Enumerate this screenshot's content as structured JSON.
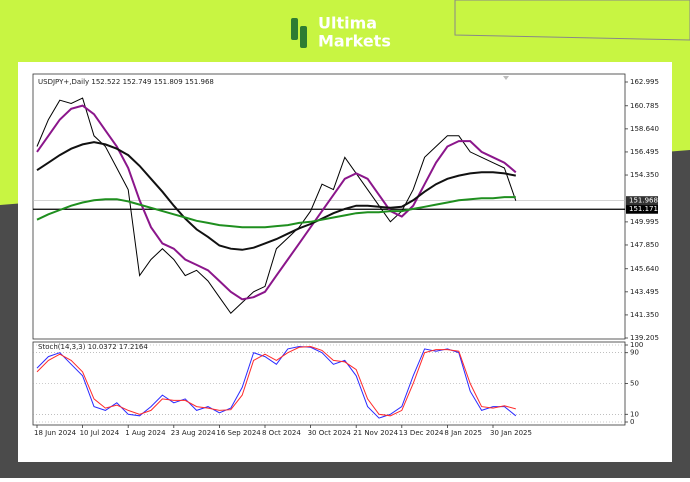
{
  "logo": {
    "line1": "Ultima",
    "line2": "Markets"
  },
  "chart_data": [
    {
      "type": "line",
      "title": "USDJPY+,Daily  152.522 152.749 151.809 151.968",
      "categories": [
        "18 Jun 2024",
        null,
        null,
        null,
        "10 Jul 2024",
        null,
        null,
        null,
        "1 Aug 2024",
        null,
        null,
        null,
        "23 Aug 2024",
        null,
        null,
        null,
        "16 Sep 2024",
        null,
        null,
        null,
        "8 Oct 2024",
        null,
        null,
        null,
        "30 Oct 2024",
        null,
        null,
        null,
        "21 Nov 2024",
        null,
        null,
        null,
        "13 Dec 2024",
        null,
        null,
        null,
        "8 Jan 2025",
        null,
        null,
        null,
        "30 Jan 2025",
        null,
        null
      ],
      "series": [
        {
          "color": "#000000",
          "width": 1,
          "values": [
            157.0,
            159.5,
            161.3,
            161.0,
            161.5,
            158.0,
            157.0,
            155.0,
            153.0,
            145.0,
            146.5,
            147.5,
            146.5,
            145.0,
            145.5,
            144.5,
            143.0,
            141.5,
            142.5,
            143.5,
            144.0,
            147.5,
            148.5,
            149.5,
            151.0,
            153.5,
            153.0,
            156.0,
            154.5,
            153.0,
            151.5,
            150.0,
            151.0,
            153.0,
            156.0,
            157.0,
            158.0,
            158.0,
            156.5,
            156.0,
            155.5,
            155.0,
            151.968
          ]
        },
        {
          "color": "#8b168b",
          "width": 2,
          "values": [
            156.5,
            158.0,
            159.5,
            160.5,
            160.8,
            160.0,
            158.5,
            157.0,
            155.0,
            152.0,
            149.5,
            148.0,
            147.5,
            146.5,
            146.0,
            145.5,
            144.5,
            143.5,
            142.8,
            143.0,
            143.5,
            145.0,
            146.5,
            148.0,
            149.5,
            151.0,
            152.5,
            154.0,
            154.5,
            154.0,
            152.5,
            151.0,
            150.5,
            151.5,
            153.5,
            155.5,
            157.0,
            157.5,
            157.5,
            156.5,
            156.0,
            155.5,
            154.6
          ]
        },
        {
          "color": "#111111",
          "width": 2,
          "values": [
            154.8,
            155.5,
            156.2,
            156.8,
            157.2,
            157.4,
            157.2,
            156.8,
            156.2,
            155.2,
            154.0,
            152.8,
            151.5,
            150.3,
            149.3,
            148.6,
            147.8,
            147.5,
            147.4,
            147.6,
            148.0,
            148.4,
            148.9,
            149.4,
            149.8,
            150.3,
            150.8,
            151.2,
            151.5,
            151.5,
            151.4,
            151.3,
            151.4,
            152.0,
            152.8,
            153.5,
            154.0,
            154.3,
            154.5,
            154.6,
            154.6,
            154.5,
            154.3
          ]
        },
        {
          "color": "#1f8f1f",
          "width": 2,
          "values": [
            150.2,
            150.7,
            151.1,
            151.5,
            151.8,
            152.0,
            152.1,
            152.1,
            151.9,
            151.6,
            151.3,
            151.0,
            150.7,
            150.4,
            150.1,
            149.9,
            149.7,
            149.6,
            149.5,
            149.5,
            149.5,
            149.6,
            149.7,
            149.9,
            150.0,
            150.2,
            150.4,
            150.6,
            150.8,
            150.9,
            150.9,
            151.0,
            151.0,
            151.2,
            151.4,
            151.6,
            151.8,
            152.0,
            152.1,
            152.2,
            152.2,
            152.3,
            152.3
          ]
        }
      ],
      "hline": 151.171,
      "last_price": 151.968,
      "ylim": [
        139.205,
        162.995
      ],
      "yticks": [
        162.995,
        160.785,
        {
          "value": 158.64,
          "label": "158.640"
        },
        156.495,
        {
          "value": 154.35,
          "label": "154.350"
        },
        149.995,
        {
          "value": 147.85,
          "label": "147.850"
        },
        {
          "value": 145.64,
          "label": "145.640"
        },
        143.495,
        {
          "value": 141.35,
          "label": "141.350"
        },
        139.205
      ],
      "grid": false
    },
    {
      "type": "line",
      "title": "Stoch(14,3,3) 10.0372 17.2164",
      "series": [
        {
          "color": "#2b2bff",
          "width": 1,
          "values": [
            70,
            85,
            90,
            75,
            60,
            20,
            15,
            25,
            10,
            8,
            20,
            35,
            25,
            30,
            15,
            20,
            12,
            18,
            45,
            90,
            85,
            75,
            95,
            98,
            97,
            90,
            75,
            80,
            60,
            20,
            5,
            10,
            20,
            60,
            95,
            92,
            95,
            90,
            40,
            15,
            20,
            20,
            8
          ]
        },
        {
          "color": "#ff2a2a",
          "width": 1,
          "values": [
            65,
            80,
            88,
            80,
            65,
            30,
            18,
            22,
            15,
            10,
            15,
            30,
            28,
            28,
            20,
            18,
            15,
            16,
            35,
            80,
            88,
            80,
            90,
            97,
            98,
            93,
            80,
            78,
            68,
            30,
            10,
            8,
            15,
            50,
            90,
            94,
            94,
            92,
            50,
            20,
            18,
            21,
            17
          ]
        }
      ],
      "ylim": [
        0,
        100
      ],
      "yticks": [
        0,
        10,
        50,
        90,
        100
      ],
      "grid": true
    }
  ]
}
